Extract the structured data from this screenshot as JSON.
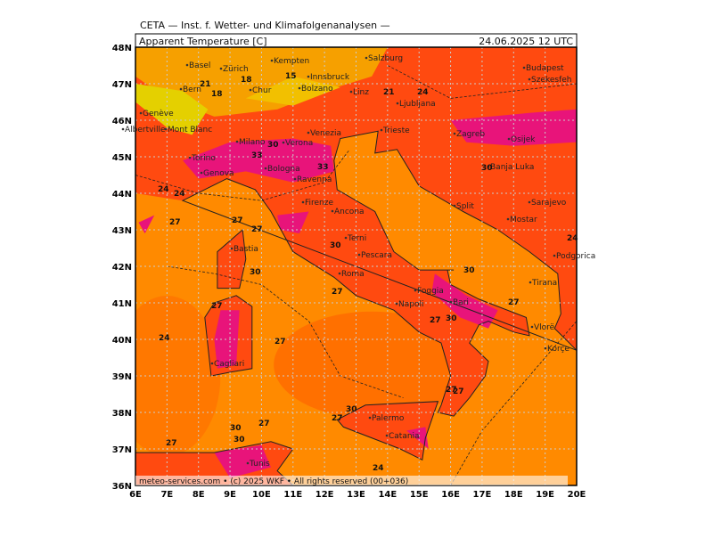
{
  "header": {
    "institute": "CETA — Inst. f. Wetter- und Klimafolgenanalysen —",
    "title": "Apparent Temperature [C]",
    "valid": "24.06.2025 12 UTC"
  },
  "footer": "meteo-services.com • (c) 2025 WKF • All rights reserved (00+036)",
  "lon_labels": [
    "6E",
    "7E",
    "8E",
    "9E",
    "10E",
    "11E",
    "12E",
    "13E",
    "14E",
    "15E",
    "16E",
    "17E",
    "18E",
    "19E",
    "20E"
  ],
  "lat_labels": [
    "36N",
    "37N",
    "38N",
    "39N",
    "40N",
    "41N",
    "42N",
    "43N",
    "44N",
    "45N",
    "46N",
    "47N",
    "48N"
  ],
  "cities": [
    "Basel",
    "Zürich",
    "Kempten",
    "Salzburg",
    "Innsbruck",
    "Bern",
    "Chur",
    "Bolzano",
    "Linz",
    "Budapest",
    "Szekesfeh",
    "Genève",
    "Milano",
    "Verona",
    "Venezia",
    "Trieste",
    "Ljubljana",
    "Zagreb",
    "Osijek",
    "Torino",
    "Genova",
    "Bologna",
    "Ravenna",
    "Banja Luka",
    "Firenze",
    "Ancona",
    "Split",
    "Sarajevo",
    "Mostar",
    "Podgorica",
    "Terni",
    "Pescara",
    "Roma",
    "Bastia",
    "Foggia",
    "Bari",
    "Napoli",
    "Tirana",
    "Vlorë",
    "Korçe",
    "Cagliari",
    "Palermo",
    "Catania",
    "Tunis",
    "Albertville",
    "Mont Blanc"
  ],
  "contour_labels": [
    27,
    24,
    27,
    30,
    27,
    27,
    30,
    27,
    27,
    30,
    27,
    24,
    30,
    27,
    27,
    27,
    30,
    27,
    24,
    21,
    18,
    15,
    18,
    21,
    24,
    30,
    33,
    30,
    24,
    27,
    30,
    33,
    30,
    24,
    27
  ]
}
